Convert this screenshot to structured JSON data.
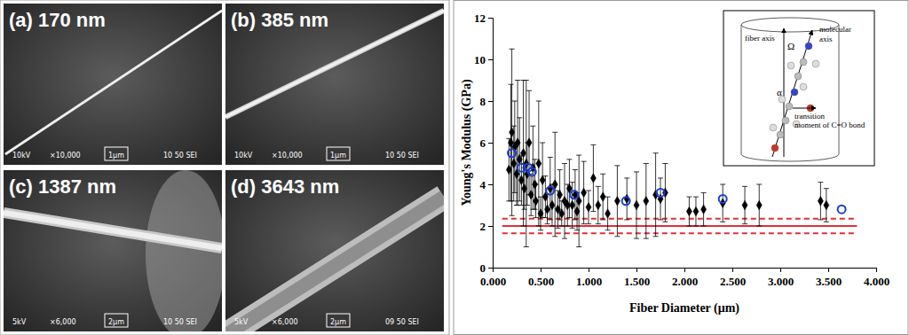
{
  "chart_data": {
    "type": "scatter",
    "x_label": "Fiber Diameter (μm)",
    "y_label": "Young's Modulus (GPa)",
    "xlim": [
      0,
      4
    ],
    "ylim": [
      0,
      12
    ],
    "xticks": [
      {
        "value": 0,
        "label": "0.000"
      },
      {
        "value": 0.5,
        "label": "0.500"
      },
      {
        "value": 1,
        "label": "1.000"
      },
      {
        "value": 1.5,
        "label": "1.500"
      },
      {
        "value": 2,
        "label": "2.000"
      },
      {
        "value": 2.5,
        "label": "2.500"
      },
      {
        "value": 3,
        "label": "3.000"
      },
      {
        "value": 3.5,
        "label": "3.500"
      },
      {
        "value": 4,
        "label": "4.000"
      }
    ],
    "yticks": [
      0,
      2,
      4,
      6,
      8,
      10,
      12
    ],
    "grid": false,
    "series": [
      {
        "type": "line",
        "color": "#e0303a",
        "line_style": "dashed",
        "x": [
          0.1,
          3.8
        ],
        "values": [
          2.35,
          2.35
        ]
      },
      {
        "type": "line",
        "color": "#e0303a",
        "line_style": "solid",
        "x": [
          0.1,
          3.8
        ],
        "values": [
          2.0,
          2.0
        ]
      },
      {
        "type": "line",
        "color": "#e0303a",
        "line_style": "dashed",
        "x": [
          0.1,
          3.8
        ],
        "values": [
          1.65,
          1.65
        ]
      },
      {
        "type": "scatter",
        "color": "#000000",
        "marker": "diamond",
        "x": [
          0.17,
          0.19,
          0.2,
          0.22,
          0.23,
          0.25,
          0.26,
          0.28,
          0.3,
          0.32,
          0.33,
          0.35,
          0.36,
          0.38,
          0.4,
          0.42,
          0.44,
          0.45,
          0.48,
          0.5,
          0.52,
          0.55,
          0.57,
          0.6,
          0.62,
          0.65,
          0.68,
          0.7,
          0.72,
          0.75,
          0.78,
          0.8,
          0.83,
          0.86,
          0.88,
          0.9,
          0.95,
          1.0,
          1.05,
          1.1,
          1.15,
          1.2,
          1.3,
          1.4,
          1.5,
          1.6,
          1.7,
          1.75,
          1.8,
          2.05,
          2.12,
          2.2,
          2.4,
          2.63,
          2.78,
          3.42,
          3.48
        ],
        "values": [
          4.7,
          6.0,
          6.5,
          5.0,
          5.8,
          4.5,
          6.0,
          5.2,
          4.2,
          5.5,
          3.8,
          5.0,
          4.5,
          6.0,
          3.5,
          4.8,
          4.0,
          3.2,
          5.0,
          2.6,
          4.2,
          3.4,
          2.8,
          3.8,
          3.0,
          4.0,
          2.8,
          3.5,
          2.6,
          3.2,
          3.0,
          3.8,
          3.0,
          3.5,
          2.7,
          3.2,
          3.6,
          2.9,
          4.3,
          3.0,
          3.4,
          2.6,
          3.2,
          3.3,
          3.0,
          3.2,
          3.5,
          3.3,
          3.6,
          2.7,
          2.7,
          2.8,
          3.1,
          3.0,
          3.0,
          3.2,
          3.0
        ],
        "errors": [
          1.5,
          2.8,
          4.0,
          1.8,
          2.2,
          1.5,
          3.0,
          2.0,
          1.2,
          3.5,
          1.0,
          4.0,
          1.5,
          2.5,
          1.0,
          2.0,
          1.2,
          0.8,
          3.0,
          0.8,
          1.8,
          1.0,
          0.7,
          1.5,
          1.0,
          2.5,
          0.9,
          1.2,
          0.6,
          1.8,
          1.0,
          1.4,
          1.1,
          1.2,
          0.9,
          2.2,
          1.5,
          0.8,
          1.6,
          0.9,
          1.1,
          0.8,
          1.7,
          1.0,
          1.6,
          1.8,
          2.0,
          1.0,
          1.4,
          0.7,
          0.7,
          0.8,
          0.9,
          0.9,
          1.0,
          0.9,
          0.8
        ]
      },
      {
        "type": "scatter",
        "color": "#1a3fd0",
        "marker": "open-circle",
        "x": [
          0.2,
          0.3,
          0.37,
          0.41,
          0.6,
          0.85,
          1.39,
          1.75,
          2.4,
          3.64
        ],
        "values": [
          5.5,
          4.8,
          4.8,
          4.6,
          3.7,
          3.5,
          3.2,
          3.6,
          3.3,
          2.8
        ]
      }
    ]
  },
  "inset": {
    "fiber_axis": "fiber axis",
    "omega": "Ω",
    "molecular_axis": [
      "molecular",
      "axis"
    ],
    "alpha": "α",
    "transition_moment": [
      "transition",
      "moment of C=O bond"
    ]
  },
  "panels": [
    {
      "label": "(a) 170 nm",
      "footer": [
        "10kV",
        "×10,000",
        "1μm",
        "10 50 SEI"
      ]
    },
    {
      "label": "(b) 385 nm",
      "footer": [
        "10kV",
        "×10,000",
        "1μm",
        "10 50 SEI"
      ]
    },
    {
      "label": "(c) 1387 nm",
      "footer": [
        "5kV",
        "×6,000",
        "2μm",
        "10 50 SEI"
      ]
    },
    {
      "label": "(d) 3643 nm",
      "footer": [
        "5kV",
        "×6,000",
        "2μm",
        "09 50 SEI"
      ]
    }
  ]
}
